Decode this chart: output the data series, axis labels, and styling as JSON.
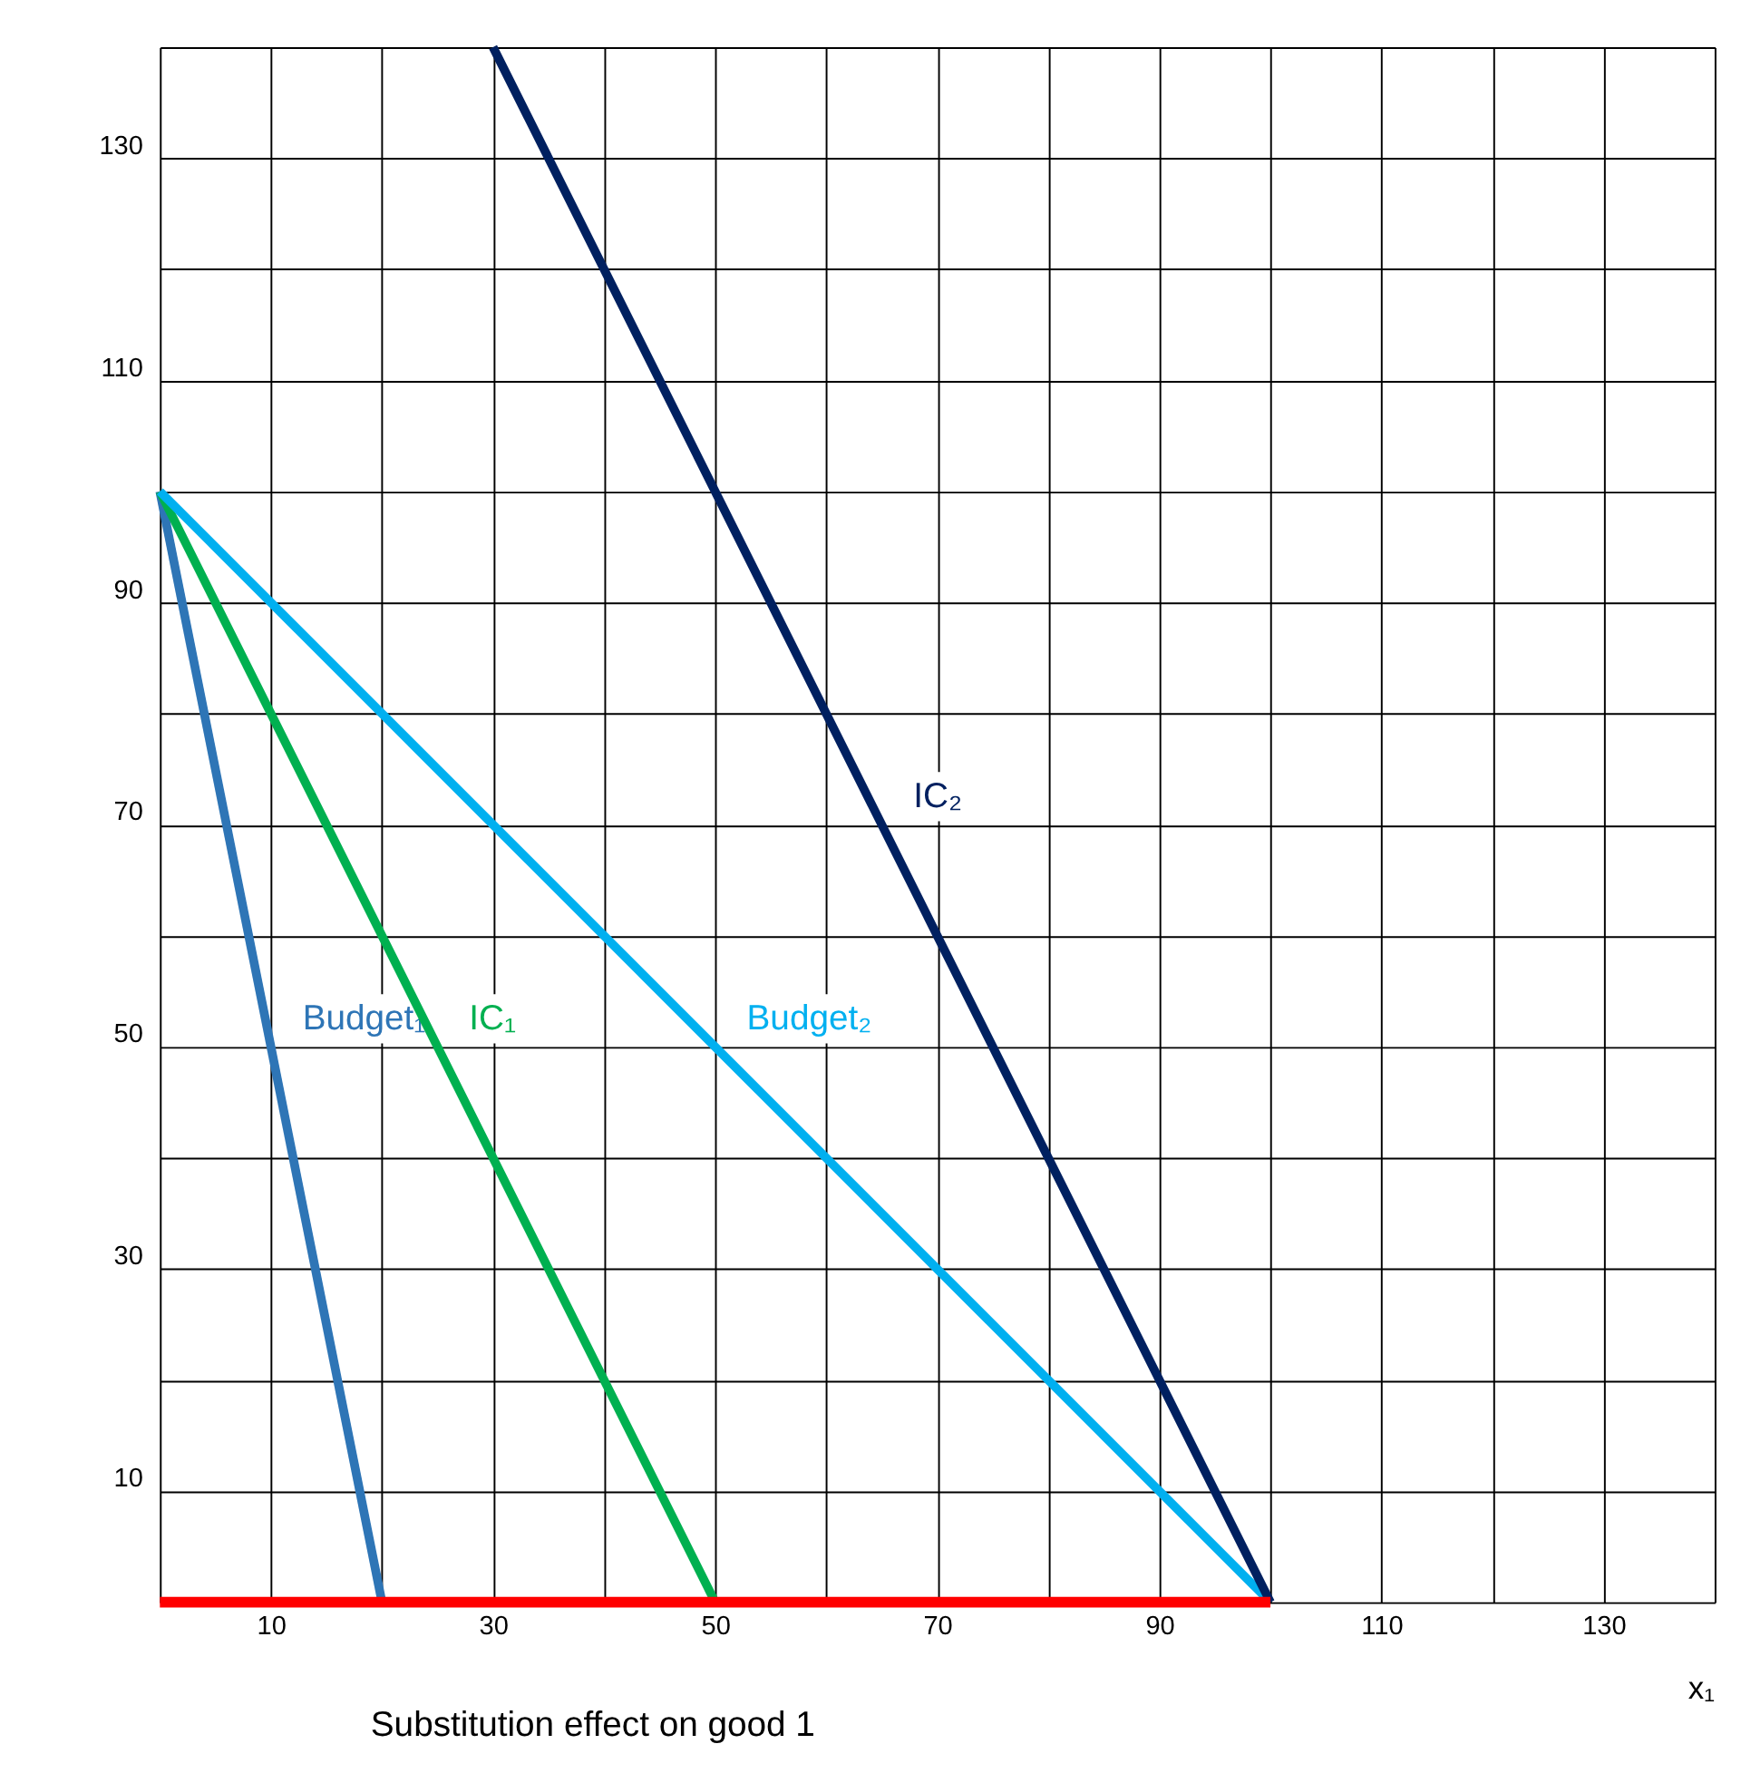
{
  "chart_data": {
    "type": "line",
    "xlabel": "x₁",
    "annotations": [
      "Substitution effect on good 1"
    ],
    "xlim": [
      0,
      140
    ],
    "ylim": [
      0,
      140
    ],
    "xticks": [
      {
        "value": 0,
        "label": null
      },
      10,
      {
        "value": 20,
        "label": null
      },
      30,
      {
        "value": 40,
        "label": null
      },
      50,
      {
        "value": 60,
        "label": null
      },
      70,
      {
        "value": 80,
        "label": null
      },
      90,
      {
        "value": 100,
        "label": null
      },
      110,
      {
        "value": 120,
        "label": null
      },
      130,
      {
        "value": 140,
        "label": null
      }
    ],
    "yticks": [
      {
        "value": 0,
        "label": null
      },
      10,
      {
        "value": 20,
        "label": null
      },
      30,
      {
        "value": 40,
        "label": null
      },
      50,
      {
        "value": 60,
        "label": null
      },
      70,
      {
        "value": 80,
        "label": null
      },
      90,
      {
        "value": 100,
        "label": null
      },
      110,
      {
        "value": 120,
        "label": null
      },
      130,
      {
        "value": 140,
        "label": null
      }
    ],
    "grid": true,
    "marker": "none",
    "line_style": "solid",
    "series": [
      {
        "name": "Budget₁",
        "color": "#2e75b6",
        "x": [
          0,
          20
        ],
        "values": [
          100,
          0
        ]
      },
      {
        "name": "IC₁",
        "color": "#00b050",
        "x": [
          0,
          50
        ],
        "values": [
          100,
          0
        ]
      },
      {
        "name": "Budget₂",
        "color": "#00b0f0",
        "x": [
          0,
          100
        ],
        "values": [
          100,
          0
        ]
      },
      {
        "name": "IC₂",
        "color": "#002060",
        "x": [
          30,
          100
        ],
        "values": [
          140,
          0
        ]
      },
      {
        "color": "#ff0000",
        "x": [
          0,
          100
        ],
        "values": [
          0,
          0
        ]
      }
    ]
  }
}
